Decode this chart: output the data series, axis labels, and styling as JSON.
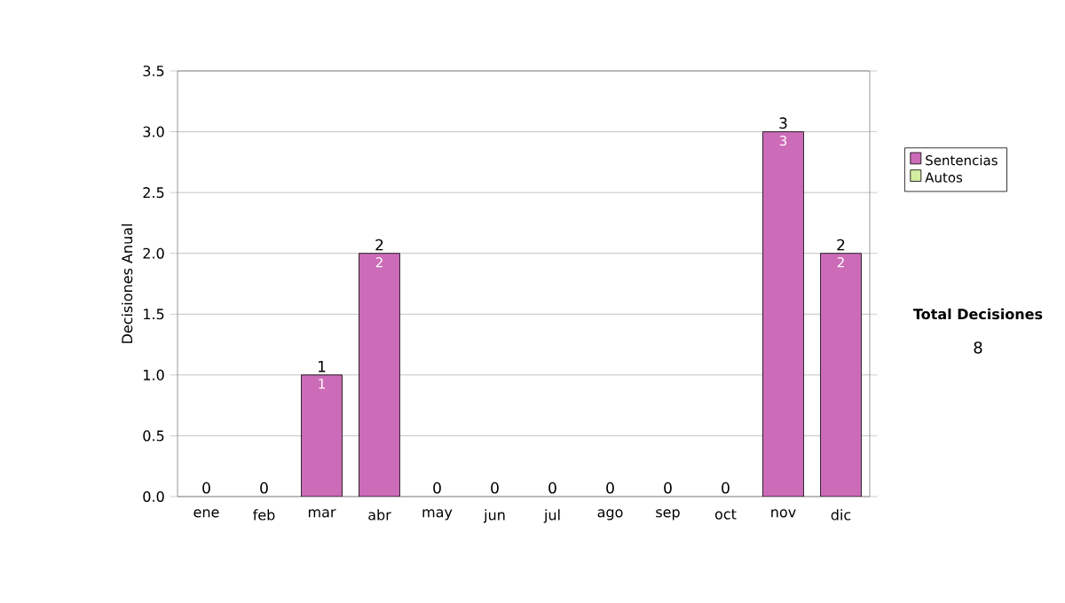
{
  "chart_data": {
    "type": "bar",
    "stacked": true,
    "ylabel": "Decisiones Anual",
    "categories": [
      "ene",
      "feb",
      "mar",
      "abr",
      "may",
      "jun",
      "jul",
      "ago",
      "sep",
      "oct",
      "nov",
      "dic"
    ],
    "series": [
      {
        "name": "Sentencias",
        "color": "#cc6cb8",
        "values": [
          0,
          0,
          1,
          2,
          0,
          0,
          0,
          0,
          0,
          0,
          3,
          2
        ],
        "value_labels": [
          null,
          null,
          "1",
          "2",
          null,
          null,
          null,
          null,
          null,
          null,
          "3",
          "2"
        ]
      },
      {
        "name": "Autos",
        "color": "#d4eca0",
        "values": [
          0,
          0,
          0,
          0,
          0,
          0,
          0,
          0,
          0,
          0,
          0,
          0
        ]
      }
    ],
    "totals": [
      "0",
      "0",
      "1",
      "2",
      "0",
      "0",
      "0",
      "0",
      "0",
      "0",
      "3",
      "2"
    ],
    "ylim": [
      0,
      3.5
    ],
    "yticks": [
      {
        "value": 0,
        "label": "0.0"
      },
      {
        "value": 0.5,
        "label": "0.5"
      },
      {
        "value": 1,
        "label": "1.0"
      },
      {
        "value": 1.5,
        "label": "1.5"
      },
      {
        "value": 2,
        "label": "2.0"
      },
      {
        "value": 2.5,
        "label": "2.5"
      },
      {
        "value": 3,
        "label": "3.0"
      },
      {
        "value": 3.5,
        "label": "3.5"
      }
    ],
    "grid": "y",
    "legend": "right",
    "annotations": [
      "Total Decisiones",
      "8"
    ]
  }
}
